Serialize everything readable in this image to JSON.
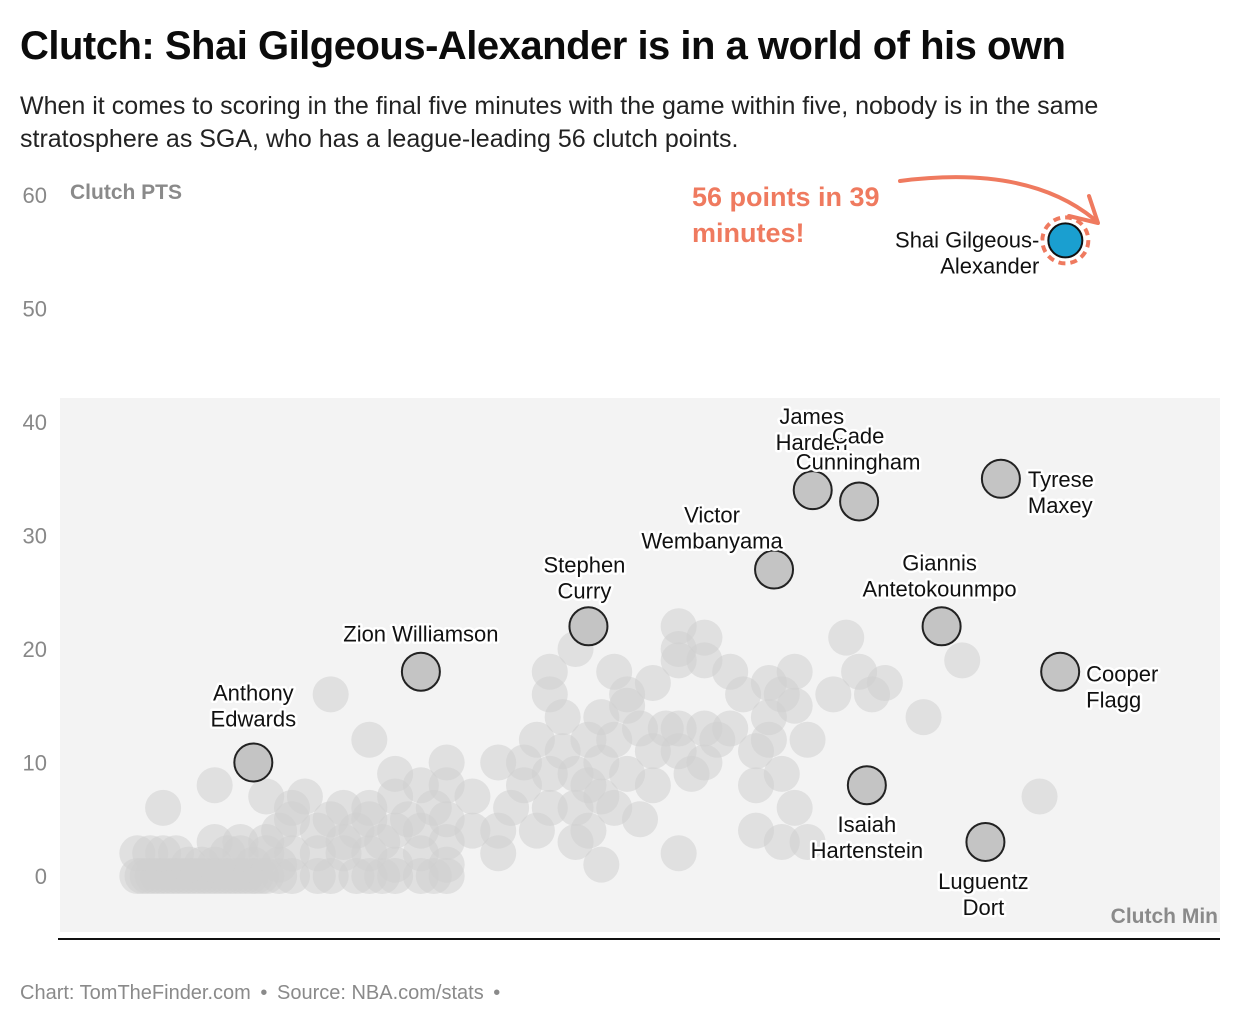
{
  "title": "Clutch: Shai Gilgeous-Alexander is in a world of his own",
  "subtitle": "When it comes to scoring in the final five minutes with the game within five, nobody is in the same stratosphere as SGA, who has a league-leading 56 clutch points.",
  "footer": {
    "chart_credit": "Chart: TomTheFinder.com",
    "separator": "•",
    "source": "Source: NBA.com/stats"
  },
  "colors": {
    "highlight": "#1a9fd0",
    "annotation": "#ef7a5f",
    "labeled_point": "#c4c4c4",
    "background_point": "#cfcfcf",
    "panel": "#f3f3f3"
  },
  "chart_data": {
    "type": "scatter",
    "title": "Clutch: Shai Gilgeous-Alexander is in a world of his own",
    "xlabel": "Clutch Min",
    "ylabel": "Clutch PTS",
    "xlim": [
      0,
      45
    ],
    "ylim": [
      -5,
      60
    ],
    "y_ticks": [
      0,
      10,
      20,
      30,
      40,
      50,
      60
    ],
    "grid": false,
    "annotation": {
      "text_lines": [
        "56 points in 39",
        "minutes!"
      ],
      "target": "Shai Gilgeous-Alexander"
    },
    "highlight_points": [
      {
        "name_lines": [
          "Shai Gilgeous-",
          "Alexander"
        ],
        "x": 39,
        "y": 56
      }
    ],
    "labeled_points": [
      {
        "name_lines": [
          "Anthony",
          "Edwards"
        ],
        "x": 7.5,
        "y": 10
      },
      {
        "name_lines": [
          "Zion Williamson"
        ],
        "x": 14,
        "y": 18
      },
      {
        "name_lines": [
          "Stephen",
          "Curry"
        ],
        "x": 20.5,
        "y": 22
      },
      {
        "name_lines": [
          "Victor",
          "Wembanyama"
        ],
        "x": 27.7,
        "y": 27
      },
      {
        "name_lines": [
          "James",
          "Harden"
        ],
        "x": 29.2,
        "y": 34
      },
      {
        "name_lines": [
          "Cade",
          "Cunningham"
        ],
        "x": 31,
        "y": 33
      },
      {
        "name_lines": [
          "Tyrese",
          "Maxey"
        ],
        "x": 36.5,
        "y": 35
      },
      {
        "name_lines": [
          "Giannis",
          "Antetokounmpo"
        ],
        "x": 34.2,
        "y": 22
      },
      {
        "name_lines": [
          "Cooper",
          "Flagg"
        ],
        "x": 38.8,
        "y": 18
      },
      {
        "name_lines": [
          "Isaiah",
          "Hartenstein"
        ],
        "x": 31.3,
        "y": 8
      },
      {
        "name_lines": [
          "Luguentz",
          "Dort"
        ],
        "x": 35.9,
        "y": 3
      }
    ],
    "background_points": [
      [
        3,
        0
      ],
      [
        3.2,
        0
      ],
      [
        3.4,
        0
      ],
      [
        3.6,
        0
      ],
      [
        3.8,
        0
      ],
      [
        4,
        0
      ],
      [
        4.2,
        0
      ],
      [
        4.4,
        0
      ],
      [
        4.6,
        0
      ],
      [
        4.8,
        0
      ],
      [
        5,
        0
      ],
      [
        5.2,
        0
      ],
      [
        5.4,
        0
      ],
      [
        5.6,
        0
      ],
      [
        5.8,
        0
      ],
      [
        6,
        0
      ],
      [
        6.2,
        0
      ],
      [
        6.4,
        0
      ],
      [
        6.6,
        0
      ],
      [
        6.8,
        0
      ],
      [
        7,
        0
      ],
      [
        7.2,
        0
      ],
      [
        7.4,
        0
      ],
      [
        7.6,
        0
      ],
      [
        7.8,
        0
      ],
      [
        8,
        0
      ],
      [
        8.5,
        0
      ],
      [
        9,
        0
      ],
      [
        10,
        0
      ],
      [
        10.5,
        0
      ],
      [
        11.5,
        0
      ],
      [
        12,
        0
      ],
      [
        12.5,
        0
      ],
      [
        13,
        0
      ],
      [
        14,
        0
      ],
      [
        14.5,
        0
      ],
      [
        15,
        0
      ],
      [
        3,
        2
      ],
      [
        3.5,
        2
      ],
      [
        4,
        2
      ],
      [
        4.5,
        2
      ],
      [
        5,
        1
      ],
      [
        5.5,
        1
      ],
      [
        6,
        1
      ],
      [
        6.5,
        2
      ],
      [
        7,
        2
      ],
      [
        7.5,
        1
      ],
      [
        8,
        2
      ],
      [
        8.5,
        1
      ],
      [
        9,
        2
      ],
      [
        10,
        2
      ],
      [
        11,
        2
      ],
      [
        12,
        2
      ],
      [
        13,
        1
      ],
      [
        14,
        2
      ],
      [
        15,
        1
      ],
      [
        6,
        3
      ],
      [
        7,
        3
      ],
      [
        8,
        3
      ],
      [
        8.5,
        4
      ],
      [
        9,
        5
      ],
      [
        9,
        6
      ],
      [
        9.5,
        7
      ],
      [
        10,
        4
      ],
      [
        10.5,
        5
      ],
      [
        11,
        3
      ],
      [
        11,
        6
      ],
      [
        11.5,
        4
      ],
      [
        12,
        5
      ],
      [
        12.5,
        3
      ],
      [
        12,
        6
      ],
      [
        13,
        4
      ],
      [
        13,
        7
      ],
      [
        13.5,
        5
      ],
      [
        13,
        9
      ],
      [
        14,
        8
      ],
      [
        14,
        4
      ],
      [
        14.5,
        6
      ],
      [
        15,
        3
      ],
      [
        15,
        5
      ],
      [
        15,
        8
      ],
      [
        15,
        10
      ],
      [
        16,
        4
      ],
      [
        16,
        7
      ],
      [
        4,
        6
      ],
      [
        6,
        8
      ],
      [
        8,
        7
      ],
      [
        12,
        12
      ],
      [
        10.5,
        16
      ],
      [
        17,
        10
      ],
      [
        17,
        2
      ],
      [
        17,
        4
      ],
      [
        17.5,
        6
      ],
      [
        18,
        8
      ],
      [
        18,
        10
      ],
      [
        18.5,
        12
      ],
      [
        18.5,
        4
      ],
      [
        19,
        9
      ],
      [
        19,
        6
      ],
      [
        19.5,
        11
      ],
      [
        19.5,
        14
      ],
      [
        20,
        9
      ],
      [
        20,
        6
      ],
      [
        20,
        3
      ],
      [
        20.5,
        8
      ],
      [
        20.5,
        12
      ],
      [
        20.5,
        4
      ],
      [
        21,
        10
      ],
      [
        21,
        7
      ],
      [
        21,
        1
      ],
      [
        21,
        14
      ],
      [
        21.5,
        12
      ],
      [
        21.5,
        6
      ],
      [
        22,
        15
      ],
      [
        22,
        9
      ],
      [
        22.5,
        5
      ],
      [
        22.5,
        13
      ],
      [
        23,
        11
      ],
      [
        23,
        17
      ],
      [
        23,
        8
      ],
      [
        23.5,
        13
      ],
      [
        24,
        11
      ],
      [
        24,
        13
      ],
      [
        24.5,
        9
      ],
      [
        24,
        2
      ],
      [
        25,
        13
      ],
      [
        25,
        10
      ],
      [
        25,
        21
      ],
      [
        25,
        19
      ],
      [
        25.5,
        12
      ],
      [
        26,
        13
      ],
      [
        26,
        18
      ],
      [
        26.5,
        16
      ],
      [
        27,
        11
      ],
      [
        27,
        8
      ],
      [
        27,
        4
      ],
      [
        27.5,
        12
      ],
      [
        27.5,
        14
      ],
      [
        27.5,
        17
      ],
      [
        28,
        16
      ],
      [
        28,
        9
      ],
      [
        28,
        3
      ],
      [
        28.5,
        18
      ],
      [
        28.5,
        15
      ],
      [
        28.5,
        6
      ],
      [
        29,
        12
      ],
      [
        29,
        3
      ],
      [
        30,
        16
      ],
      [
        30.5,
        21
      ],
      [
        31,
        18
      ],
      [
        31.5,
        16
      ],
      [
        32,
        17
      ],
      [
        33.5,
        14
      ],
      [
        35,
        19
      ],
      [
        38,
        7
      ],
      [
        19,
        16
      ],
      [
        19,
        18
      ],
      [
        20,
        20
      ],
      [
        21.5,
        18
      ],
      [
        22,
        16
      ],
      [
        24,
        20
      ],
      [
        24,
        22
      ],
      [
        24,
        19
      ]
    ]
  }
}
